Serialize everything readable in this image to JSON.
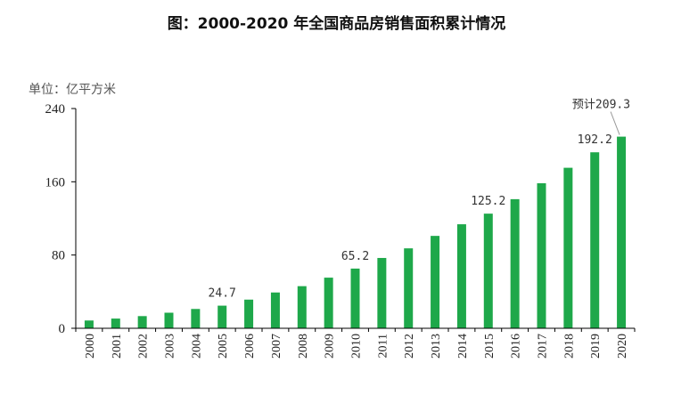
{
  "chart_data": {
    "type": "bar",
    "title": "图：2000-2020 年全国商品房销售面积累计情况",
    "unit_label": "单位：亿平方米",
    "categories": [
      "2000",
      "2001",
      "2002",
      "2003",
      "2004",
      "2005",
      "2006",
      "2007",
      "2008",
      "2009",
      "2010",
      "2011",
      "2012",
      "2013",
      "2014",
      "2015",
      "2016",
      "2017",
      "2018",
      "2019",
      "2020"
    ],
    "values": [
      8.5,
      10.6,
      13.3,
      17.0,
      21.1,
      24.7,
      31.3,
      39.1,
      46.0,
      55.3,
      65.2,
      76.8,
      87.3,
      100.9,
      113.6,
      125.2,
      141.0,
      158.4,
      175.3,
      192.2,
      209.3
    ],
    "data_labels": [
      {
        "category": "2005",
        "text": "24.7"
      },
      {
        "category": "2010",
        "text": "65.2"
      },
      {
        "category": "2015",
        "text": "125.2"
      },
      {
        "category": "2019",
        "text": "192.2"
      },
      {
        "category": "2020",
        "text": "预计209.3"
      }
    ],
    "ylim": [
      0,
      240
    ],
    "yticks": [
      "0",
      "80",
      "160",
      "240"
    ],
    "bar_color": "#1ea84a",
    "grid": false,
    "legend": "none"
  }
}
